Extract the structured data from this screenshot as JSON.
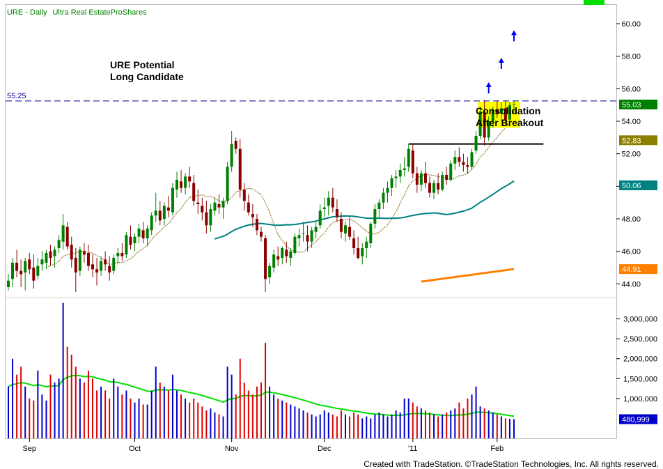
{
  "header": {
    "symbol": "URE",
    "separator": " - ",
    "interval": "Daily",
    "name": "Ultra Real EstateProShares"
  },
  "annotations": {
    "title_line1": "URE Potential",
    "title_line2": "Long Candidate",
    "consolidation_line1": "Consolidation",
    "consolidation_line2": "After Breakout",
    "resistance_label": "55.25"
  },
  "footer": {
    "credit": "Created with TradeStation. ©TradeStation Technologies, Inc. All rights reserved."
  },
  "colors": {
    "up": "#008000",
    "down": "#8b0000",
    "vol_up": "#0000cc",
    "vol_down": "#e00000",
    "ma_short": "#8b6914",
    "ma_mid": "#008080",
    "ma_long": "#ff8000",
    "ma_volume": "#00e000",
    "resistance": "#00008b",
    "highlight": "#ffff00",
    "arrow": "#0000ff"
  },
  "chart_data": {
    "type": "candlestick",
    "title": "URE - Daily Ultra Real EstateProShares",
    "x_labels": [
      {
        "label": "Sep",
        "bar": 5
      },
      {
        "label": "Oct",
        "bar": 30
      },
      {
        "label": "Nov",
        "bar": 53
      },
      {
        "label": "Dec",
        "bar": 75
      },
      {
        "label": "'11",
        "bar": 96
      },
      {
        "label": "Feb",
        "bar": 116
      }
    ],
    "price_axis": {
      "ticks": [
        44,
        46,
        48,
        50,
        52,
        54,
        56,
        58,
        60
      ],
      "range": [
        43.2,
        61.2
      ]
    },
    "volume_axis": {
      "ticks": [
        "1,000,000",
        "1,500,000",
        "2,000,000",
        "2,500,000",
        "3,000,000"
      ],
      "values": [
        1000000,
        1500000,
        2000000,
        2500000,
        3000000
      ],
      "range": [
        0,
        3500000
      ]
    },
    "price_value_labels": [
      {
        "value": 55.03,
        "label": "55.03",
        "series": "close"
      },
      {
        "value": 52.83,
        "label": "52.83",
        "series": "ma_short"
      },
      {
        "value": 50.06,
        "label": "50.06",
        "series": "ma_mid"
      },
      {
        "value": 44.91,
        "label": "44.91",
        "series": "ma_long"
      }
    ],
    "volume_value_label": {
      "value": 480999,
      "label": "480,999"
    },
    "resistance_level": 55.25,
    "support_level": 52.6,
    "support_from_bar": 95,
    "support_to_bar": 127,
    "highlight_box": {
      "bar_from": 112,
      "bar_to": 121,
      "low": 53.6,
      "high": 55.2
    },
    "arrows": [
      {
        "bar": 114,
        "price": 56.4
      },
      {
        "bar": 117,
        "price": 57.9
      },
      {
        "bar": 120,
        "price": 59.6
      }
    ],
    "bars": [
      [
        43.8,
        44.6,
        43.6,
        44.2,
        1300000
      ],
      [
        44.3,
        45.6,
        43.8,
        45.3,
        2000000
      ],
      [
        45.3,
        46.1,
        44.4,
        44.8,
        1600000
      ],
      [
        44.8,
        45.5,
        43.8,
        44.6,
        1800000
      ],
      [
        44.7,
        45.6,
        43.6,
        45.4,
        1300000
      ],
      [
        45.5,
        45.9,
        44.6,
        44.9,
        1000000
      ],
      [
        45.0,
        45.8,
        43.7,
        44.2,
        950000
      ],
      [
        44.5,
        45.6,
        44.3,
        45.1,
        1700000
      ],
      [
        45.2,
        46.0,
        44.8,
        45.5,
        1100000
      ],
      [
        45.3,
        46.1,
        44.9,
        45.9,
        950000
      ],
      [
        46.0,
        46.4,
        45.1,
        45.6,
        1600000
      ],
      [
        45.7,
        46.3,
        45.0,
        46.1,
        1400000
      ],
      [
        46.2,
        47.0,
        45.9,
        46.7,
        1500000
      ],
      [
        46.6,
        48.3,
        46.1,
        47.6,
        3400000
      ],
      [
        47.5,
        47.8,
        46.1,
        46.3,
        2300000
      ],
      [
        46.4,
        46.9,
        45.0,
        45.5,
        2100000
      ],
      [
        45.6,
        46.2,
        43.5,
        44.7,
        1800000
      ],
      [
        44.8,
        46.3,
        44.5,
        46.1,
        1500000
      ],
      [
        46.0,
        46.5,
        45.3,
        45.8,
        1400000
      ],
      [
        45.9,
        46.4,
        44.8,
        45.1,
        1700000
      ],
      [
        45.2,
        45.8,
        44.4,
        44.9,
        1500000
      ],
      [
        44.9,
        45.6,
        43.9,
        44.7,
        1200000
      ],
      [
        44.8,
        45.7,
        44.5,
        45.4,
        1300000
      ],
      [
        45.5,
        46.0,
        44.8,
        45.2,
        1200000
      ],
      [
        45.1,
        45.7,
        44.2,
        44.7,
        1000000
      ],
      [
        44.8,
        45.8,
        44.6,
        45.6,
        1500000
      ],
      [
        45.7,
        46.2,
        45.2,
        45.9,
        1300000
      ],
      [
        45.9,
        46.5,
        45.4,
        45.7,
        1100000
      ],
      [
        45.8,
        47.2,
        45.6,
        47.0,
        1200000
      ],
      [
        46.9,
        47.6,
        46.1,
        46.4,
        1000000
      ],
      [
        46.5,
        47.1,
        46.0,
        46.9,
        900000
      ],
      [
        46.9,
        47.7,
        46.5,
        47.4,
        1000000
      ],
      [
        47.3,
        47.8,
        46.5,
        46.8,
        850000
      ],
      [
        46.8,
        47.6,
        46.3,
        47.4,
        850000
      ],
      [
        47.3,
        48.4,
        47.0,
        48.2,
        1200000
      ],
      [
        48.2,
        49.6,
        47.8,
        48.5,
        1800000
      ],
      [
        48.5,
        49.1,
        47.6,
        47.9,
        1400000
      ],
      [
        48.0,
        49.0,
        47.6,
        48.8,
        1300000
      ],
      [
        48.7,
        49.4,
        48.1,
        48.5,
        1200000
      ],
      [
        48.4,
        50.2,
        48.2,
        49.9,
        1600000
      ],
      [
        49.8,
        50.9,
        49.3,
        50.4,
        1200000
      ],
      [
        50.3,
        51.0,
        49.6,
        49.9,
        1100000
      ],
      [
        49.9,
        50.8,
        49.5,
        50.6,
        1000000
      ],
      [
        50.6,
        51.2,
        49.9,
        50.3,
        900000
      ],
      [
        50.2,
        50.7,
        48.8,
        49.1,
        1000000
      ],
      [
        49.0,
        49.8,
        48.3,
        48.9,
        900000
      ],
      [
        48.8,
        49.3,
        47.9,
        48.4,
        800000
      ],
      [
        48.4,
        49.1,
        47.1,
        47.6,
        700000
      ],
      [
        47.6,
        48.9,
        47.2,
        48.6,
        750000
      ],
      [
        48.5,
        49.3,
        48.2,
        49.0,
        650000
      ],
      [
        48.9,
        49.5,
        48.3,
        48.7,
        600000
      ],
      [
        48.7,
        49.3,
        48.0,
        49.1,
        550000
      ],
      [
        49.1,
        51.5,
        48.9,
        51.2,
        1800000
      ],
      [
        51.2,
        53.4,
        50.9,
        52.6,
        1600000
      ],
      [
        52.8,
        53.0,
        52.0,
        52.3,
        1100000
      ],
      [
        52.3,
        52.9,
        49.3,
        49.8,
        2000000
      ],
      [
        49.8,
        50.2,
        48.5,
        49.1,
        1400000
      ],
      [
        49.0,
        49.5,
        48.2,
        48.4,
        1200000
      ],
      [
        48.3,
        48.9,
        47.5,
        48.1,
        1100000
      ],
      [
        48.0,
        48.3,
        47.0,
        47.3,
        1300000
      ],
      [
        47.2,
        47.5,
        46.6,
        46.9,
        1400000
      ],
      [
        46.8,
        47.0,
        43.5,
        44.3,
        2400000
      ],
      [
        44.4,
        45.3,
        44.0,
        45.1,
        1300000
      ],
      [
        45.0,
        46.1,
        44.7,
        45.8,
        1100000
      ],
      [
        45.7,
        46.3,
        45.1,
        45.5,
        1000000
      ],
      [
        45.6,
        46.3,
        45.2,
        46.2,
        950000
      ],
      [
        46.1,
        46.6,
        45.3,
        45.7,
        900000
      ],
      [
        45.6,
        46.2,
        45.1,
        46.0,
        850000
      ],
      [
        45.9,
        47.1,
        45.8,
        46.9,
        800000
      ],
      [
        46.8,
        47.4,
        46.3,
        47.0,
        750000
      ],
      [
        47.1,
        47.8,
        46.6,
        47.1,
        700000
      ],
      [
        47.0,
        47.6,
        46.0,
        46.6,
        650000
      ],
      [
        46.6,
        47.5,
        46.2,
        47.3,
        600000
      ],
      [
        47.2,
        47.8,
        46.8,
        47.5,
        550000
      ],
      [
        47.6,
        48.9,
        47.4,
        48.5,
        600000
      ],
      [
        48.6,
        49.3,
        48.1,
        48.7,
        700000
      ],
      [
        48.8,
        49.7,
        48.2,
        49.3,
        650000
      ],
      [
        49.3,
        49.9,
        48.4,
        48.7,
        600000
      ],
      [
        48.6,
        49.2,
        47.8,
        48.1,
        550000
      ],
      [
        48.0,
        48.4,
        46.8,
        47.2,
        700000
      ],
      [
        47.1,
        47.8,
        46.6,
        47.6,
        600000
      ],
      [
        47.5,
        48.1,
        46.7,
        46.9,
        550000
      ],
      [
        46.8,
        47.3,
        45.8,
        46.2,
        650000
      ],
      [
        46.2,
        46.9,
        45.5,
        45.6,
        600000
      ],
      [
        45.7,
        46.5,
        45.2,
        46.2,
        500000
      ],
      [
        46.2,
        46.9,
        45.6,
        46.6,
        550000
      ],
      [
        46.5,
        47.8,
        46.2,
        47.7,
        500000
      ],
      [
        47.7,
        48.9,
        47.4,
        48.6,
        600000
      ],
      [
        48.6,
        49.2,
        48.0,
        49.0,
        650000
      ],
      [
        49.0,
        49.9,
        48.6,
        49.6,
        600000
      ],
      [
        49.6,
        50.3,
        49.0,
        49.9,
        550000
      ],
      [
        49.9,
        50.7,
        49.4,
        50.5,
        600000
      ],
      [
        50.5,
        51.0,
        49.9,
        50.6,
        700000
      ],
      [
        50.6,
        51.4,
        50.2,
        51.0,
        650000
      ],
      [
        51.0,
        51.8,
        50.6,
        51.1,
        1000000
      ],
      [
        51.2,
        52.6,
        50.9,
        52.3,
        1000000
      ],
      [
        52.2,
        52.6,
        50.5,
        50.8,
        900000
      ],
      [
        50.8,
        51.2,
        49.6,
        50.1,
        800000
      ],
      [
        50.1,
        51.0,
        49.7,
        50.8,
        750000
      ],
      [
        50.8,
        51.5,
        49.9,
        50.2,
        700000
      ],
      [
        50.2,
        50.6,
        49.3,
        49.6,
        650000
      ],
      [
        49.6,
        50.4,
        49.2,
        50.2,
        600000
      ],
      [
        50.2,
        50.8,
        49.5,
        49.8,
        550000
      ],
      [
        49.8,
        50.9,
        49.7,
        50.7,
        600000
      ],
      [
        50.7,
        51.2,
        50.1,
        50.4,
        650000
      ],
      [
        50.4,
        51.6,
        50.3,
        51.4,
        700000
      ],
      [
        51.4,
        52.2,
        51.0,
        51.8,
        750000
      ],
      [
        51.8,
        52.4,
        51.2,
        51.5,
        900000
      ],
      [
        51.5,
        52.0,
        50.9,
        51.3,
        750000
      ],
      [
        51.3,
        51.8,
        50.8,
        51.2,
        1000000
      ],
      [
        51.2,
        52.3,
        51.0,
        52.1,
        1100000
      ],
      [
        52.2,
        53.4,
        52.0,
        53.1,
        1300000
      ],
      [
        53.1,
        54.9,
        52.9,
        54.6,
        800000
      ],
      [
        54.6,
        55.3,
        52.5,
        53.0,
        750000
      ],
      [
        53.0,
        54.3,
        52.8,
        54.0,
        700000
      ],
      [
        54.0,
        54.9,
        53.6,
        54.7,
        650000
      ],
      [
        54.7,
        55.3,
        54.2,
        54.5,
        600000
      ],
      [
        54.5,
        55.2,
        54.0,
        54.8,
        550000
      ],
      [
        54.8,
        55.3,
        53.8,
        54.1,
        500000
      ],
      [
        54.1,
        55.2,
        53.8,
        55.0,
        490000
      ],
      [
        55.0,
        55.3,
        54.5,
        55.03,
        480999
      ]
    ]
  }
}
